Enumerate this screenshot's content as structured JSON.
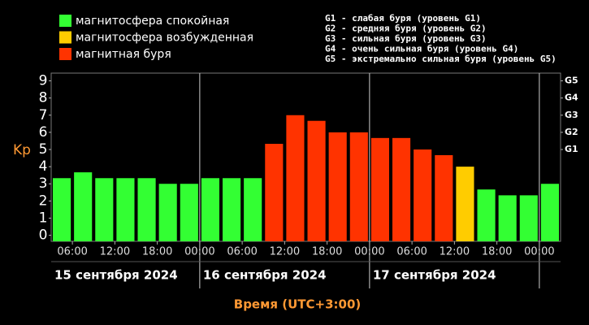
{
  "chart_data": {
    "type": "bar",
    "ylabel": "Kp",
    "xlabel": "Время (UTC+3:00)",
    "legend": [
      {
        "name": "магнитосфера спокойная",
        "color": "#33ff33"
      },
      {
        "name": "магнитосфера возбужденная",
        "color": "#ffcc00"
      },
      {
        "name": "магнитная буря",
        "color": "#ff3300"
      }
    ],
    "storm_levels": [
      "G1 - слабая буря (уровень G1)",
      "G2 - средняя буря (уровень G2)",
      "G3 - сильная буря (уровень G3)",
      "G4 - очень сильная буря (уровень G4)",
      "G5 - экстремально сильная буря (уровень G5)"
    ],
    "x": [
      3,
      6,
      9,
      12,
      15,
      18,
      21,
      24,
      27,
      30,
      33,
      36,
      39,
      42,
      45,
      48,
      51,
      54,
      57,
      60,
      63,
      66,
      69,
      72
    ],
    "values": [
      3.33,
      3.67,
      3.33,
      3.33,
      3.33,
      3.0,
      3.0,
      3.33,
      3.33,
      3.33,
      5.33,
      7.0,
      6.67,
      6.0,
      6.0,
      5.67,
      5.67,
      5.0,
      4.67,
      4.0,
      2.67,
      2.33,
      2.33,
      3.0
    ],
    "colors": [
      "#33ff33",
      "#33ff33",
      "#33ff33",
      "#33ff33",
      "#33ff33",
      "#33ff33",
      "#33ff33",
      "#33ff33",
      "#33ff33",
      "#33ff33",
      "#ff3300",
      "#ff3300",
      "#ff3300",
      "#ff3300",
      "#ff3300",
      "#ff3300",
      "#ff3300",
      "#ff3300",
      "#ff3300",
      "#ffcc00",
      "#33ff33",
      "#33ff33",
      "#33ff33",
      "#33ff33"
    ],
    "xlim": [
      3,
      75
    ],
    "xticks": [
      {
        "value": 6,
        "label": "06:00"
      },
      {
        "value": 12,
        "label": "12:00"
      },
      {
        "value": 18,
        "label": "18:00"
      },
      {
        "value": 24,
        "label": "00:00"
      },
      {
        "value": 30,
        "label": "06:00"
      },
      {
        "value": 36,
        "label": "12:00"
      },
      {
        "value": 42,
        "label": "18:00"
      },
      {
        "value": 48,
        "label": "00:00"
      },
      {
        "value": 54,
        "label": "06:00"
      },
      {
        "value": 60,
        "label": "12:00"
      },
      {
        "value": 66,
        "label": "18:00"
      },
      {
        "value": 72,
        "label": "00:00"
      }
    ],
    "x_gridlines": [
      24,
      48,
      72
    ],
    "days": [
      {
        "start": 3,
        "label": "15 сентября 2024"
      },
      {
        "start": 24,
        "label": "16 сентября 2024"
      },
      {
        "start": 48,
        "label": "17 сентября 2024"
      }
    ],
    "ylim": [
      -0.35,
      9.45
    ],
    "yticks": [
      0,
      1,
      2,
      3,
      4,
      5,
      6,
      7,
      8,
      9
    ],
    "y2lim": [
      -0.35,
      9.45
    ],
    "y2ticks": [
      {
        "value": 5,
        "label": "G1"
      },
      {
        "value": 6,
        "label": "G2"
      },
      {
        "value": 7,
        "label": "G3"
      },
      {
        "value": 8,
        "label": "G4"
      },
      {
        "value": 9,
        "label": "G5"
      }
    ]
  }
}
